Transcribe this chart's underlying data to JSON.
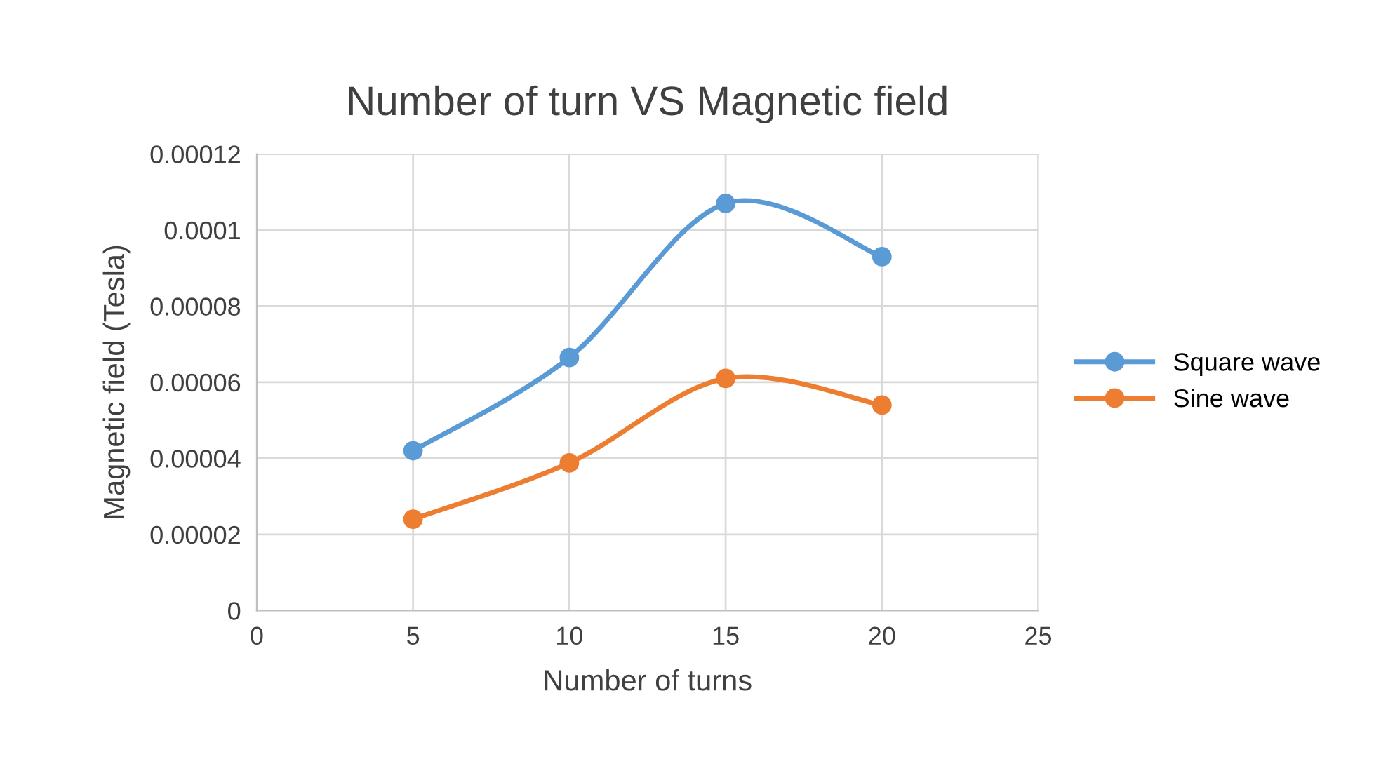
{
  "chart_data": {
    "type": "line",
    "title": "Number of turn VS Magnetic field",
    "xlabel": "Number of turns",
    "ylabel": "Magnetic field (Tesla)",
    "x": [
      5,
      10,
      15,
      20
    ],
    "series": [
      {
        "name": "Square wave",
        "color": "#5b9bd5",
        "values": [
          4.2e-05,
          6.65e-05,
          0.000107,
          9.3e-05
        ]
      },
      {
        "name": "Sine wave",
        "color": "#ed7d31",
        "values": [
          2.4e-05,
          3.88e-05,
          6.1e-05,
          5.4e-05
        ]
      }
    ],
    "xlim": [
      0,
      25
    ],
    "xticks": [
      0,
      5,
      10,
      15,
      20,
      25
    ],
    "ylim": [
      0,
      0.00012
    ],
    "yticks": [
      0,
      {
        "value": 2e-05,
        "label": "0.00002"
      },
      {
        "value": 4e-05,
        "label": "0.00004"
      },
      {
        "value": 6e-05,
        "label": "0.00006"
      },
      {
        "value": 8e-05,
        "label": "0.00008"
      },
      {
        "value": 0.0001,
        "label": "0.0001"
      },
      {
        "value": 0.00012,
        "label": "0.00012"
      }
    ],
    "grid": true,
    "legend": "right",
    "marker": "circle",
    "line_style": "solid"
  }
}
